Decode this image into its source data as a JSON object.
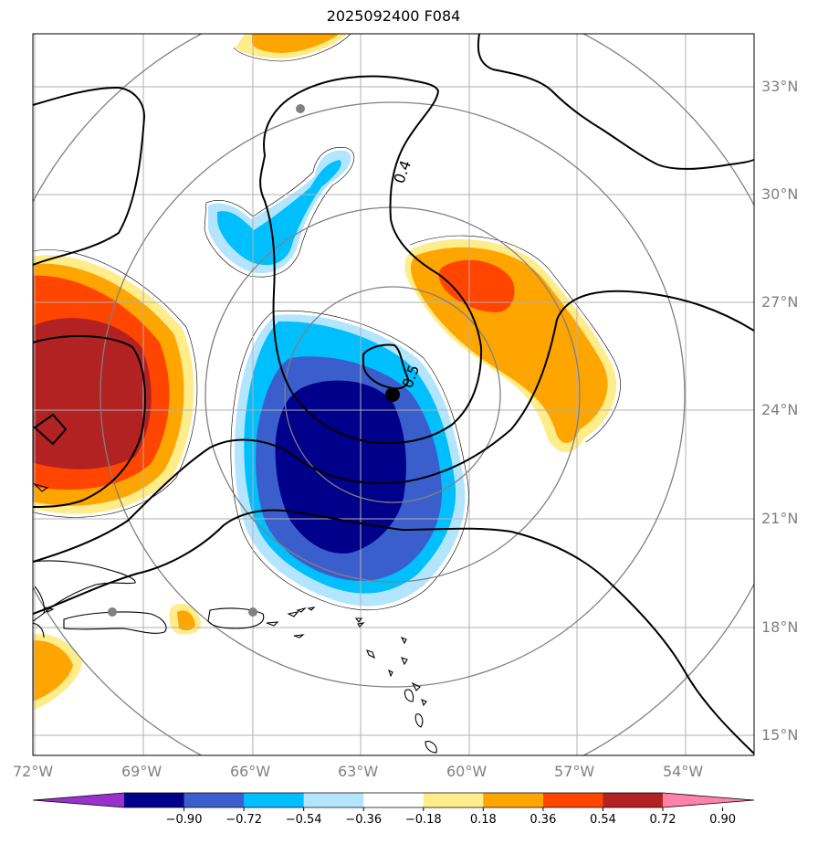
{
  "title": "2025092400 F084",
  "map": {
    "lon_range": [
      -72.0,
      -52.0
    ],
    "lat_range": [
      14.5,
      34.5
    ],
    "x_ticks": [
      {
        "value": -72,
        "label": "72°W"
      },
      {
        "value": -69,
        "label": "69°W"
      },
      {
        "value": -66,
        "label": "66°W"
      },
      {
        "value": -63,
        "label": "63°W"
      },
      {
        "value": -60,
        "label": "60°W"
      },
      {
        "value": -57,
        "label": "57°W"
      },
      {
        "value": -54,
        "label": "54°W"
      }
    ],
    "y_ticks": [
      {
        "value": 15,
        "label": "15°N"
      },
      {
        "value": 18,
        "label": "18°N"
      },
      {
        "value": 21,
        "label": "21°N"
      },
      {
        "value": 24,
        "label": "24°N"
      },
      {
        "value": 27,
        "label": "27°N"
      },
      {
        "value": 30,
        "label": "30°N"
      },
      {
        "value": 33,
        "label": "33°N"
      }
    ],
    "gridlines": true,
    "storm_center": {
      "lon": -62.1,
      "lat": 24.4
    },
    "range_ring_center": {
      "lon": -62.1,
      "lat": 24.4
    },
    "range_rings_deg": [
      3,
      5.2,
      8.1,
      11.3
    ],
    "contour_labels": [
      {
        "text": "0.4",
        "lon": -61.2,
        "lat": 31.0
      },
      {
        "text": "0.5",
        "lon": -61.6,
        "lat": 25.0
      }
    ],
    "gray_markers": [
      {
        "lon": -64.7,
        "lat": 32.3
      },
      {
        "lon": -69.9,
        "lat": 18.5
      },
      {
        "lon": -66.0,
        "lat": 18.4
      }
    ]
  },
  "colorbar": {
    "colors": [
      "#9932cc",
      "#00008b",
      "#3a5fcd",
      "#00bfff",
      "#b3e5ff",
      "#ffffff",
      "#ffec8b",
      "#ffa500",
      "#ff4500",
      "#b22222",
      "#ff82ab"
    ],
    "labels": [
      "−0.90",
      "−0.72",
      "−0.54",
      "−0.36",
      "−0.18",
      "0.18",
      "0.36",
      "0.54",
      "0.72",
      "0.90"
    ]
  }
}
